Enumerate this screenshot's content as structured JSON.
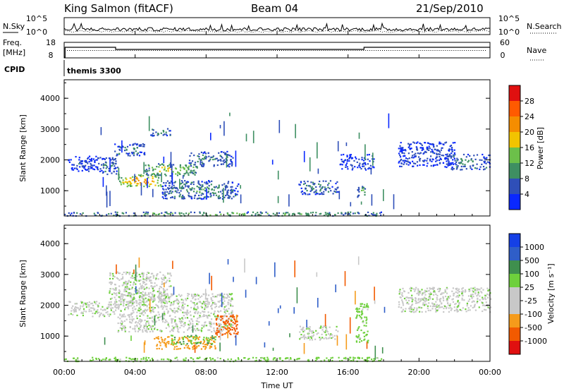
{
  "header": {
    "station": "King Salmon (fitACF)",
    "beam": "Beam 04",
    "date": "21/Sep/2010"
  },
  "noise_panel": {
    "left_label": "N.Sky",
    "right_label": "N.Search",
    "left_ticks": [
      "10^5",
      "10^0"
    ],
    "right_ticks": [
      "10^5",
      "10^0"
    ]
  },
  "freq_panel": {
    "left_label_1": "Freq.",
    "left_label_2": "[MHz]",
    "left_ticks": [
      "18",
      "8"
    ],
    "right_label": "Nave",
    "right_ticks": [
      "60",
      "0"
    ]
  },
  "cpid": {
    "label": "CPID",
    "program": "themis 3300"
  },
  "power_panel": {
    "ylabel": "Slant Range [km]",
    "y_ticks": [
      "4000",
      "3000",
      "2000",
      "1000"
    ],
    "colorbar_label": "Power [dB]",
    "colorbar_ticks": [
      "28",
      "24",
      "20",
      "16",
      "12",
      "8",
      "4"
    ]
  },
  "velocity_panel": {
    "ylabel": "Slant Range [km]",
    "y_ticks": [
      "4000",
      "3000",
      "2000",
      "1000"
    ],
    "colorbar_label": "Velocity [m s⁻¹]",
    "colorbar_ticks": [
      "1000",
      "500",
      "100",
      "25",
      "-25",
      "-100",
      "-500",
      "-1000"
    ]
  },
  "x_axis": {
    "label": "Time UT",
    "ticks": [
      "00:00",
      "04:00",
      "08:00",
      "12:00",
      "16:00",
      "20:00",
      "00:00"
    ]
  },
  "colors": {
    "power_scale": [
      "#0a28ff",
      "#2f4fb8",
      "#3e8f62",
      "#6cc04a",
      "#f2c400",
      "#f58d00",
      "#ff5a00",
      "#e01010"
    ],
    "velocity_scale": [
      "#e01010",
      "#f25a00",
      "#f59b1b",
      "#c8c8c8",
      "#c8c8c8",
      "#6ed03c",
      "#3f8f4e",
      "#2f5ec8",
      "#1540e6"
    ]
  },
  "chart_data": [
    {
      "type": "heatmap",
      "title": "Power",
      "xlabel": "Time UT",
      "ylabel": "Slant Range [km]",
      "xlim": [
        0,
        24
      ],
      "ylim": [
        180,
        4600
      ],
      "color_range": [
        0,
        30
      ],
      "regions": [
        {
          "t0": 0.2,
          "t1": 1.8,
          "r0": 1650,
          "r1": 2150,
          "p": 6
        },
        {
          "t0": 1.8,
          "t1": 3.0,
          "r0": 1550,
          "r1": 2100,
          "p": 9
        },
        {
          "t0": 3.0,
          "t1": 5.5,
          "r0": 1150,
          "r1": 1550,
          "p": 25
        },
        {
          "t0": 4.5,
          "t1": 7.5,
          "r0": 1500,
          "r1": 1900,
          "p": 18
        },
        {
          "t0": 7.0,
          "t1": 9.5,
          "r0": 1800,
          "r1": 2300,
          "p": 10
        },
        {
          "t0": 2.8,
          "t1": 4.5,
          "r0": 2150,
          "r1": 2550,
          "p": 10
        },
        {
          "t0": 4.8,
          "t1": 6.0,
          "r0": 2800,
          "r1": 3050,
          "p": 11
        },
        {
          "t0": 5.5,
          "t1": 9.8,
          "r0": 750,
          "r1": 1350,
          "p": 11
        },
        {
          "t0": 13.2,
          "t1": 15.4,
          "r0": 900,
          "r1": 1350,
          "p": 10
        },
        {
          "t0": 16.5,
          "t1": 17.0,
          "r0": 800,
          "r1": 1200,
          "p": 14
        },
        {
          "t0": 15.5,
          "t1": 17.5,
          "r0": 1700,
          "r1": 2200,
          "p": 5
        },
        {
          "t0": 18.8,
          "t1": 22.0,
          "r0": 1800,
          "r1": 2600,
          "p": 6
        },
        {
          "t0": 21.5,
          "t1": 24.0,
          "r0": 1700,
          "r1": 2200,
          "p": 10
        },
        {
          "t0": 0.0,
          "t1": 18.0,
          "r0": 200,
          "r1": 330,
          "p": 14
        }
      ]
    },
    {
      "type": "heatmap",
      "title": "Velocity",
      "xlabel": "Time UT",
      "ylabel": "Slant Range [km]",
      "xlim": [
        0,
        24
      ],
      "ylim": [
        180,
        4600
      ],
      "color_range": [
        -1000,
        1000
      ],
      "regions": [
        {
          "t0": 0.2,
          "t1": 3.0,
          "r0": 1650,
          "r1": 2150,
          "v": 0
        },
        {
          "t0": 3.0,
          "t1": 9.5,
          "r0": 1150,
          "r1": 2400,
          "v": 0
        },
        {
          "t0": 2.5,
          "t1": 6.0,
          "r0": 2100,
          "r1": 3100,
          "v": 0
        },
        {
          "t0": 5.0,
          "t1": 8.5,
          "r0": 600,
          "r1": 1000,
          "v": -150
        },
        {
          "t0": 8.5,
          "t1": 9.8,
          "r0": 1000,
          "r1": 1700,
          "v": -700
        },
        {
          "t0": 6.0,
          "t1": 8.5,
          "r0": 750,
          "r1": 1050,
          "v": 80
        },
        {
          "t0": 13.2,
          "t1": 15.4,
          "r0": 900,
          "r1": 1350,
          "v": 0
        },
        {
          "t0": 16.4,
          "t1": 17.1,
          "r0": 800,
          "r1": 2100,
          "v": 50
        },
        {
          "t0": 18.8,
          "t1": 24.0,
          "r0": 1800,
          "r1": 2600,
          "v": 0
        },
        {
          "t0": 0.0,
          "t1": 18.0,
          "r0": 200,
          "r1": 330,
          "v": 60
        }
      ]
    },
    {
      "type": "line",
      "title": "N.Sky / N.Search",
      "xlim": [
        0,
        24
      ],
      "ylim": [
        0,
        5
      ],
      "ylog": true
    },
    {
      "type": "line",
      "title": "Freq. / Nave",
      "xlim": [
        0,
        24
      ],
      "series": [
        {
          "x": [
            0,
            0.05,
            0.05,
            2.9,
            2.9,
            16.9,
            16.9,
            24
          ],
          "y": [
            8,
            8,
            15,
            15,
            13.5,
            13.5,
            15,
            15
          ]
        }
      ],
      "ylim": [
        8,
        18
      ]
    }
  ]
}
